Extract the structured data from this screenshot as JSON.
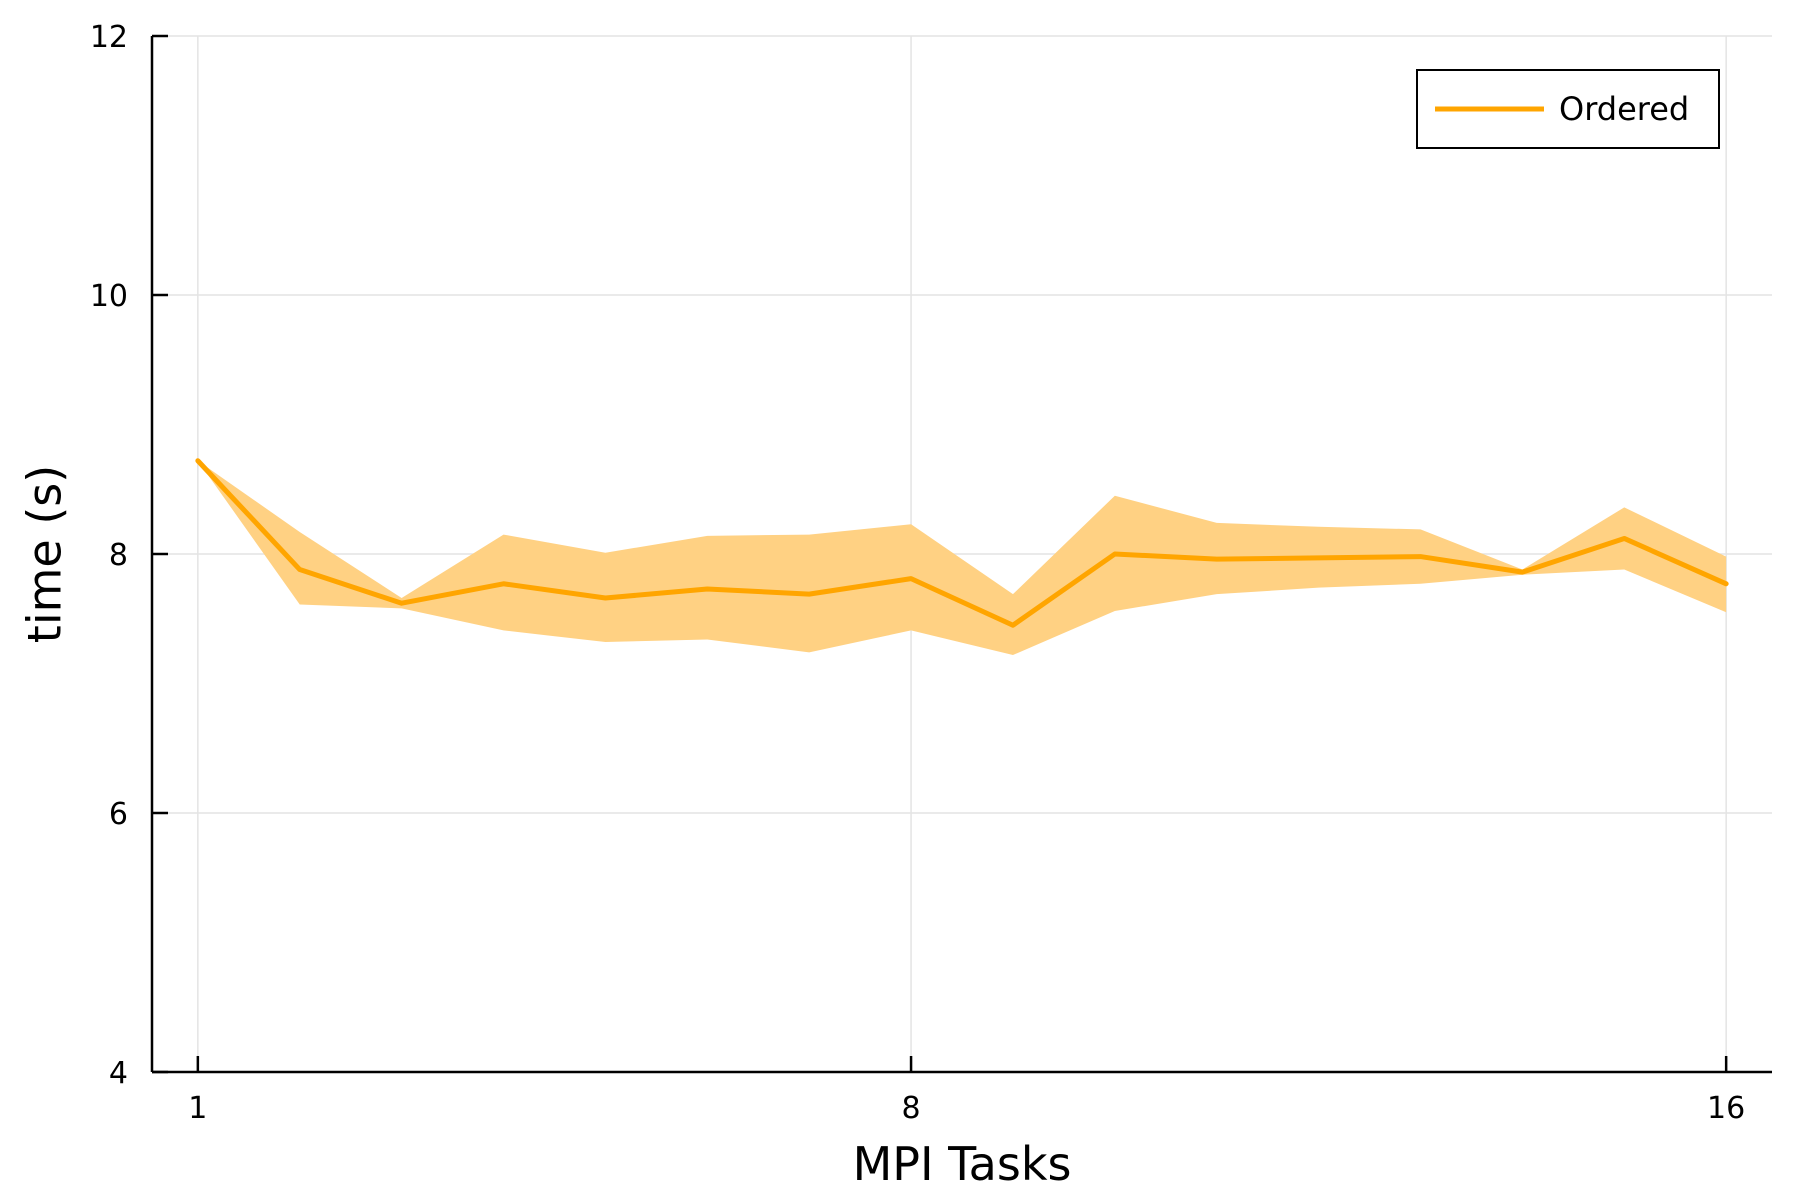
{
  "chart_data": {
    "type": "line",
    "xlabel": "MPI Tasks",
    "ylabel": "time (s)",
    "xlim": [
      0.55,
      16.45
    ],
    "ylim": [
      4,
      12
    ],
    "xticks": [
      1,
      8,
      16
    ],
    "yticks": [
      4,
      6,
      8,
      10,
      12
    ],
    "grid": true,
    "legend_position": "top-right",
    "series": [
      {
        "name": "Ordered",
        "color": "#FFA500",
        "band_color": "#FFD183",
        "x": [
          1,
          2,
          3,
          4,
          5,
          6,
          7,
          8,
          9,
          10,
          11,
          12,
          13,
          14,
          15,
          16
        ],
        "y": [
          8.72,
          7.88,
          7.62,
          7.77,
          7.66,
          7.73,
          7.69,
          7.81,
          7.45,
          8.0,
          7.96,
          7.97,
          7.98,
          7.86,
          8.12,
          7.77
        ],
        "upper": [
          8.72,
          8.17,
          7.66,
          8.15,
          8.01,
          8.14,
          8.15,
          8.23,
          7.69,
          8.45,
          8.24,
          8.21,
          8.19,
          7.88,
          8.36,
          7.98
        ],
        "lower": [
          8.72,
          7.61,
          7.58,
          7.41,
          7.32,
          7.34,
          7.24,
          7.41,
          7.22,
          7.56,
          7.69,
          7.74,
          7.77,
          7.84,
          7.88,
          7.55
        ]
      }
    ]
  }
}
